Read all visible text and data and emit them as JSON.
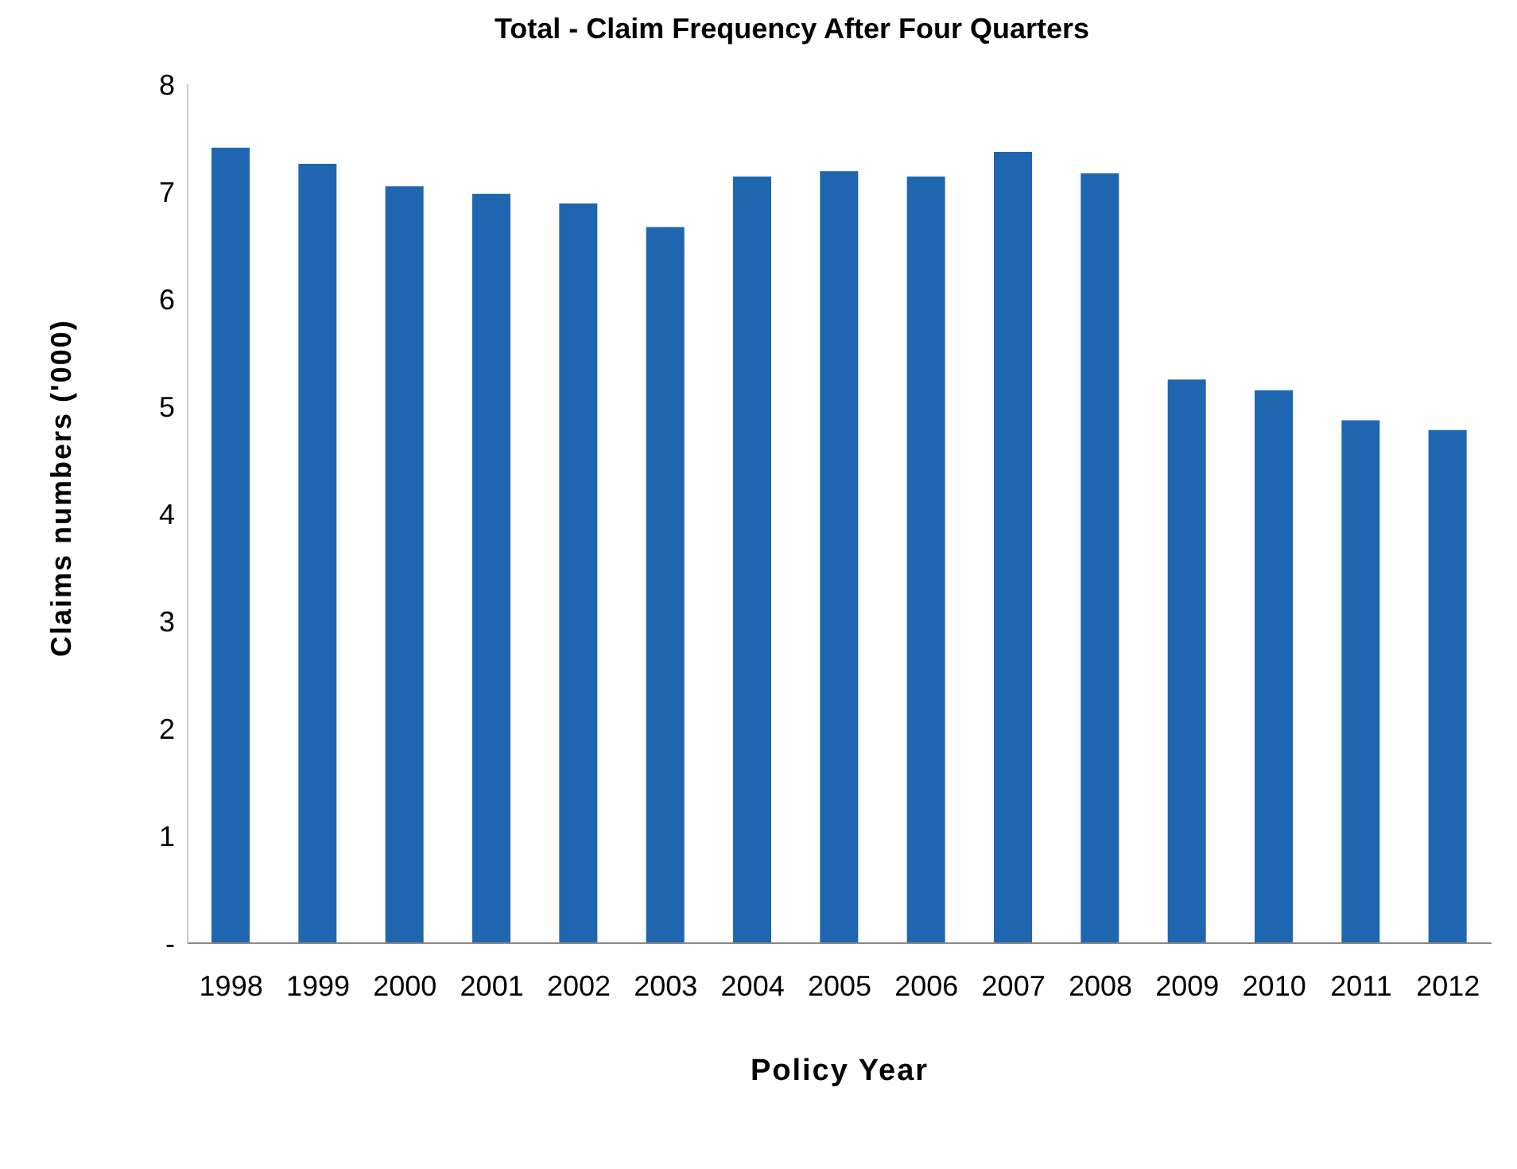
{
  "chart_data": {
    "type": "bar",
    "title": "Total - Claim Frequency After Four Quarters",
    "xlabel": "Policy Year",
    "ylabel": "Claims numbers ('000)",
    "categories": [
      "1998",
      "1999",
      "2000",
      "2001",
      "2002",
      "2003",
      "2004",
      "2005",
      "2006",
      "2007",
      "2008",
      "2009",
      "2010",
      "2011",
      "2012"
    ],
    "values": [
      7.41,
      7.26,
      7.05,
      6.98,
      6.89,
      6.67,
      7.14,
      7.19,
      7.14,
      7.37,
      7.17,
      5.25,
      5.15,
      4.87,
      4.78
    ],
    "color": "#1f66b0",
    "ylim": [
      0,
      8
    ],
    "yticks": [
      {
        "value": 0,
        "label": "-"
      },
      1,
      2,
      3,
      4,
      5,
      6,
      7,
      8
    ]
  }
}
